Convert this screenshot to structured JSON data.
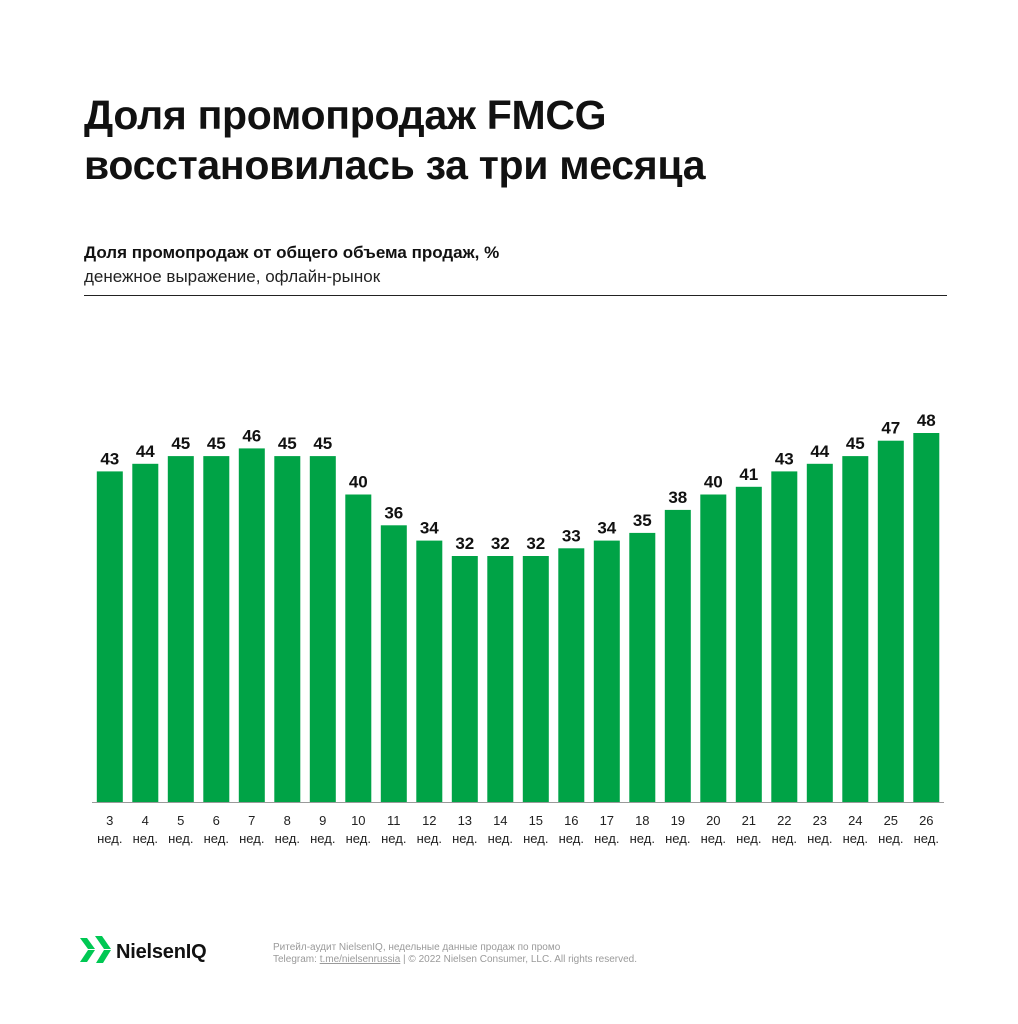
{
  "header": {
    "title_line1": "Доля промопродаж FMCG",
    "title_line2": "восстановилась за три месяца"
  },
  "chart_data": {
    "type": "bar",
    "title": "Доля промопродаж от общего объема продаж, %",
    "subtitle": "денежное выражение, офлайн-рынок",
    "categories": [
      "3",
      "4",
      "5",
      "6",
      "7",
      "8",
      "9",
      "10",
      "11",
      "12",
      "13",
      "14",
      "15",
      "16",
      "17",
      "18",
      "19",
      "20",
      "21",
      "22",
      "23",
      "24",
      "25",
      "26"
    ],
    "category_suffix": "нед.",
    "values": [
      43,
      44,
      45,
      45,
      46,
      45,
      45,
      40,
      36,
      34,
      32,
      32,
      32,
      33,
      34,
      35,
      38,
      40,
      41,
      43,
      44,
      45,
      47,
      48
    ],
    "data_labels": true,
    "ylim": [
      0,
      48
    ],
    "grid": false,
    "bar_color": "#00A346"
  },
  "footer": {
    "brand": "NielsenIQ",
    "logo_colors": [
      "#00C853",
      "#111111"
    ],
    "note_line1": "Ритейл-аудит NielsenIQ, недельные данные продаж по промо",
    "note_prefix": "Telegram: ",
    "note_link": "t.me/nielsenrussia",
    "note_suffix": "  |  © 2022 Nielsen Consumer, LLC. All rights reserved."
  }
}
